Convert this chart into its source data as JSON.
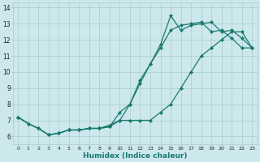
{
  "xlabel": "Humidex (Indice chaleur)",
  "bg_color": "#cce8ec",
  "grid_color": "#aacccc",
  "line_color": "#1a7a6e",
  "marker": "D",
  "markersize": 2.0,
  "linewidth": 0.9,
  "xlim": [
    -0.5,
    23.5
  ],
  "ylim": [
    5.5,
    14.3
  ],
  "xticks": [
    0,
    1,
    2,
    3,
    4,
    5,
    6,
    7,
    8,
    9,
    10,
    11,
    12,
    13,
    14,
    15,
    16,
    17,
    18,
    19,
    20,
    21,
    22,
    23
  ],
  "yticks": [
    6,
    7,
    8,
    9,
    10,
    11,
    12,
    13,
    14
  ],
  "series1_x": [
    0,
    1,
    2,
    3,
    4,
    5,
    6,
    7,
    8,
    9,
    10,
    11,
    12,
    13,
    14,
    15,
    16,
    17,
    18,
    19,
    20,
    21,
    22,
    23
  ],
  "series1_y": [
    7.2,
    6.8,
    6.5,
    6.1,
    6.2,
    6.4,
    6.4,
    6.5,
    6.5,
    6.6,
    7.0,
    8.0,
    9.3,
    10.5,
    11.7,
    13.5,
    12.6,
    12.9,
    13.0,
    13.1,
    12.5,
    12.6,
    12.1,
    11.5
  ],
  "series2_x": [
    0,
    1,
    2,
    3,
    4,
    5,
    6,
    7,
    8,
    9,
    10,
    11,
    12,
    13,
    14,
    15,
    16,
    17,
    18,
    19,
    20,
    21,
    22,
    23
  ],
  "series2_y": [
    7.2,
    6.8,
    6.5,
    6.1,
    6.2,
    6.4,
    6.4,
    6.5,
    6.5,
    6.6,
    7.5,
    8.0,
    9.5,
    10.5,
    11.5,
    12.6,
    12.9,
    13.0,
    13.1,
    12.5,
    12.6,
    12.1,
    11.5,
    11.5
  ],
  "series3_x": [
    0,
    1,
    2,
    3,
    4,
    5,
    6,
    7,
    8,
    9,
    10,
    11,
    12,
    13,
    14,
    15,
    16,
    17,
    18,
    19,
    20,
    21,
    22,
    23
  ],
  "series3_y": [
    7.2,
    6.8,
    6.5,
    6.1,
    6.2,
    6.4,
    6.4,
    6.5,
    6.5,
    6.7,
    7.0,
    7.0,
    7.0,
    7.0,
    7.5,
    8.0,
    9.0,
    10.0,
    11.0,
    11.5,
    12.0,
    12.5,
    12.5,
    11.5
  ]
}
